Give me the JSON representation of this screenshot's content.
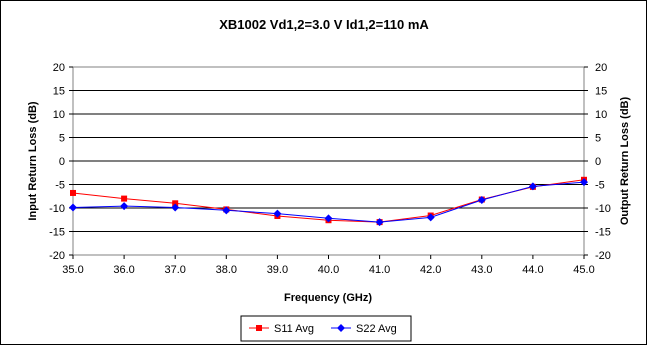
{
  "chart_data": {
    "type": "line",
    "title": "XB1002  Vd1,2=3.0 V  Id1,2=110 mA",
    "xlabel": "Frequency (GHz)",
    "ylabel": "Input Return Loss (dB)",
    "y2label": "Output Return Loss (dB)",
    "x": [
      35.0,
      36.0,
      37.0,
      38.0,
      39.0,
      40.0,
      41.0,
      42.0,
      43.0,
      44.0,
      45.0
    ],
    "x_tick_labels": [
      "35.0",
      "36.0",
      "37.0",
      "38.0",
      "39.0",
      "40.0",
      "41.0",
      "42.0",
      "43.0",
      "44.0",
      "45.0"
    ],
    "xlim": [
      35.0,
      45.0
    ],
    "ylim": [
      -20,
      20
    ],
    "y2lim": [
      -20,
      20
    ],
    "y_ticks": [
      20,
      15,
      10,
      5,
      0,
      -5,
      -10,
      -15,
      -20
    ],
    "y_tick_labels": [
      "20",
      "15",
      "10",
      "5",
      "0",
      "-5",
      "-10",
      "-15",
      "-20"
    ],
    "grid": "horizontal",
    "legend_position": "bottom",
    "series": [
      {
        "name": "S11 Avg",
        "color": "#ff0000",
        "marker": "square",
        "axis": "left",
        "values": [
          -6.8,
          -8.0,
          -9.0,
          -10.3,
          -11.7,
          -12.6,
          -13.0,
          -11.6,
          -8.2,
          -5.5,
          -4.0
        ]
      },
      {
        "name": "S22 Avg",
        "color": "#0000ff",
        "marker": "diamond",
        "axis": "right",
        "values": [
          -9.9,
          -9.6,
          -9.9,
          -10.5,
          -11.2,
          -12.2,
          -13.0,
          -12.0,
          -8.3,
          -5.4,
          -4.5
        ]
      }
    ]
  }
}
